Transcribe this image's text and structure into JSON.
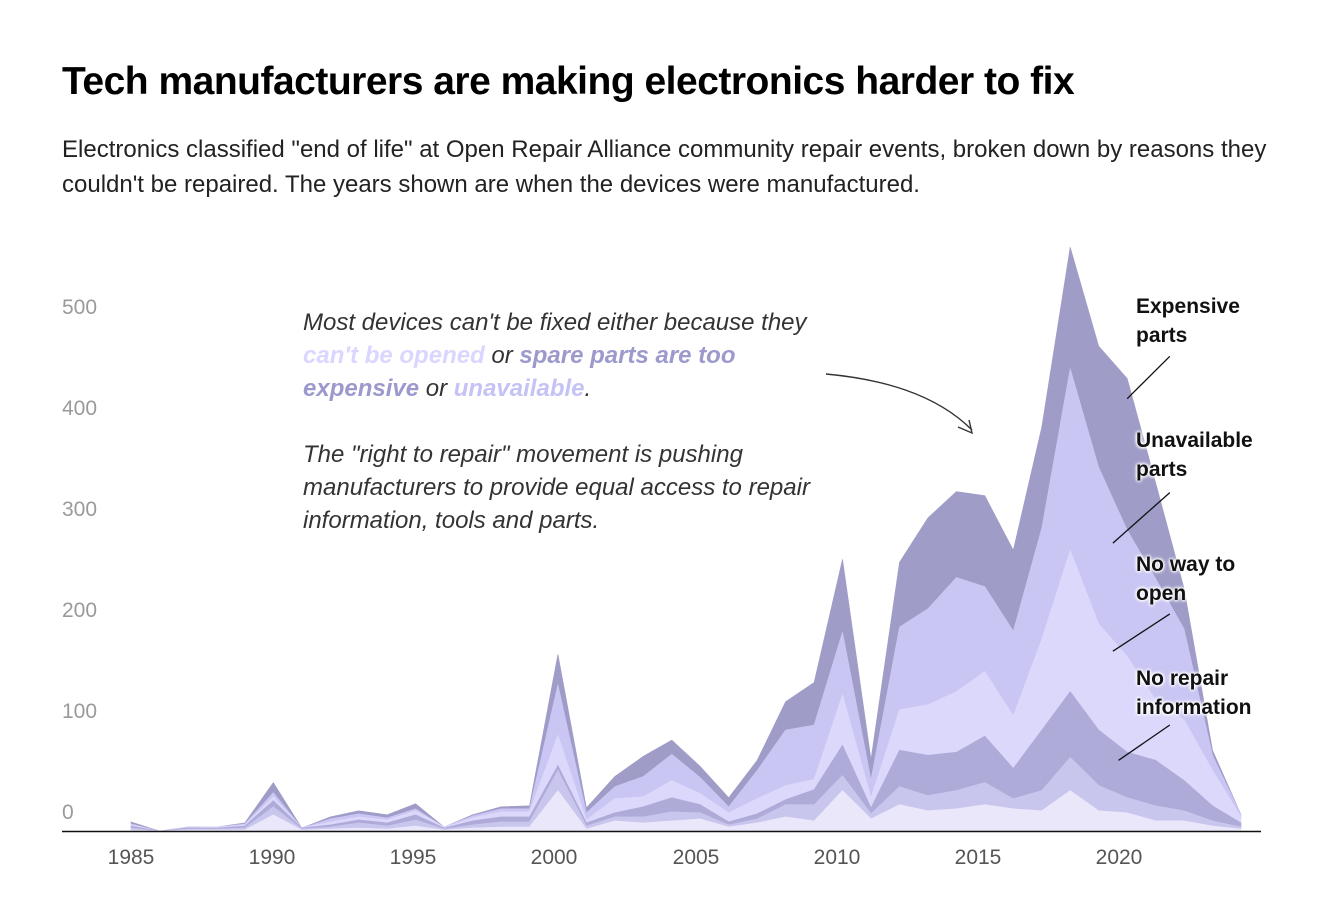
{
  "title": "Tech manufacturers are making electronics harder to fix",
  "subtitle": "Electronics classified \"end of life\" at Open Repair Alliance community repair events, broken down by reasons they couldn't be repaired. The years shown are when the devices were manufactured.",
  "annotation": {
    "p1_a": "Most devices can't be fixed either because they ",
    "p1_hl1": "can't be opened",
    "p1_b": " or ",
    "p1_hl2": "spare parts are too expensive",
    "p1_c": " or ",
    "p1_hl3": "unavailable",
    "p1_d": ".",
    "p2": "The \"right to repair\" movement is pushing manufacturers to provide equal access to repair information, tools and parts."
  },
  "colors": {
    "no_info_a": "#ebe7fb",
    "no_info_b": "#c9c6ee",
    "no_info_c": "#aeabd8",
    "no_way_to_open": "#dcd8fb",
    "unavailable_parts": "#c9c6f3",
    "expensive_parts": "#9f9cc8",
    "axis": "#111111",
    "arrow": "#333333"
  },
  "chart_data": {
    "type": "area",
    "stacked": true,
    "title": "Tech manufacturers are making electronics harder to fix",
    "xlabel": "",
    "ylabel": "",
    "xlim": [
      1985,
      2024
    ],
    "ylim": [
      0,
      580
    ],
    "x_ticks": [
      1985,
      1990,
      1995,
      2000,
      2005,
      2010,
      2015,
      2020
    ],
    "y_ticks": [
      0,
      100,
      200,
      300,
      400,
      500
    ],
    "x": [
      1985,
      1986,
      1987,
      1988,
      1989,
      1990,
      1991,
      1992,
      1993,
      1994,
      1995,
      1996,
      1997,
      1998,
      1999,
      2000,
      2001,
      2002,
      2003,
      2004,
      2005,
      2006,
      2007,
      2008,
      2009,
      2010,
      2011,
      2012,
      2013,
      2014,
      2015,
      2016,
      2017,
      2018,
      2019,
      2020,
      2021,
      2022,
      2023,
      2024
    ],
    "series": [
      {
        "name": "No repair information (part 1)",
        "values": [
          1,
          0,
          1,
          1,
          1,
          16,
          1,
          2,
          3,
          2,
          5,
          1,
          3,
          4,
          4,
          40,
          2,
          10,
          8,
          10,
          12,
          4,
          8,
          14,
          10,
          40,
          12,
          26,
          20,
          22,
          26,
          22,
          20,
          40,
          20,
          18,
          10,
          10,
          5,
          2
        ]
      },
      {
        "name": "No repair information (part 2)",
        "values": [
          2,
          0,
          1,
          1,
          2,
          8,
          1,
          2,
          5,
          3,
          6,
          1,
          3,
          5,
          5,
          20,
          3,
          4,
          6,
          9,
          6,
          2,
          4,
          12,
          16,
          15,
          5,
          18,
          15,
          18,
          22,
          10,
          20,
          33,
          25,
          15,
          15,
          10,
          5,
          2
        ]
      },
      {
        "name": "No repair information (part 3)",
        "values": [
          2,
          0,
          1,
          1,
          2,
          6,
          1,
          2,
          3,
          3,
          5,
          1,
          4,
          5,
          5,
          5,
          3,
          4,
          10,
          14,
          8,
          3,
          5,
          5,
          15,
          30,
          6,
          36,
          40,
          38,
          46,
          30,
          60,
          65,
          55,
          45,
          45,
          30,
          15,
          4
        ]
      },
      {
        "name": "No way to open",
        "values": [
          1,
          0,
          0,
          1,
          1,
          4,
          0,
          3,
          3,
          3,
          4,
          1,
          3,
          5,
          5,
          30,
          3,
          14,
          10,
          17,
          11,
          9,
          15,
          14,
          10,
          50,
          10,
          40,
          50,
          60,
          64,
          52,
          90,
          140,
          105,
          95,
          60,
          60,
          35,
          6
        ]
      },
      {
        "name": "Unavailable parts",
        "values": [
          1,
          0,
          1,
          0,
          1,
          4,
          0,
          3,
          3,
          2,
          2,
          0,
          2,
          3,
          3,
          50,
          7,
          12,
          20,
          26,
          16,
          6,
          28,
          55,
          54,
          62,
          18,
          82,
          95,
          113,
          84,
          84,
          110,
          180,
          155,
          125,
          120,
          90,
          15,
          2
        ]
      },
      {
        "name": "Expensive parts",
        "values": [
          2,
          0,
          0,
          0,
          1,
          10,
          0,
          2,
          3,
          3,
          5,
          0,
          1,
          2,
          3,
          30,
          5,
          10,
          20,
          14,
          11,
          9,
          10,
          28,
          42,
          72,
          20,
          64,
          90,
          85,
          90,
          80,
          100,
          120,
          120,
          150,
          95,
          40,
          5,
          0
        ]
      }
    ],
    "series_labels": [
      "Expensive parts",
      "Unavailable parts",
      "No way to open",
      "No repair information"
    ],
    "label_lines": [
      {
        "name": "Expensive parts",
        "lines": [
          "Expensive",
          "parts"
        ]
      },
      {
        "name": "Unavailable parts",
        "lines": [
          "Unavailable",
          "parts"
        ]
      },
      {
        "name": "No way to open",
        "lines": [
          "No way to",
          "open"
        ]
      },
      {
        "name": "No repair information",
        "lines": [
          "No repair",
          "information"
        ]
      }
    ],
    "leader_points": [
      {
        "from": [
          2021.5,
          470
        ],
        "to": [
          2020.0,
          428
        ]
      },
      {
        "from": [
          2021.5,
          335
        ],
        "to": [
          2019.5,
          285
        ]
      },
      {
        "from": [
          2021.5,
          215
        ],
        "to": [
          2019.5,
          178
        ]
      },
      {
        "from": [
          2021.5,
          105
        ],
        "to": [
          2019.7,
          70
        ]
      }
    ]
  }
}
